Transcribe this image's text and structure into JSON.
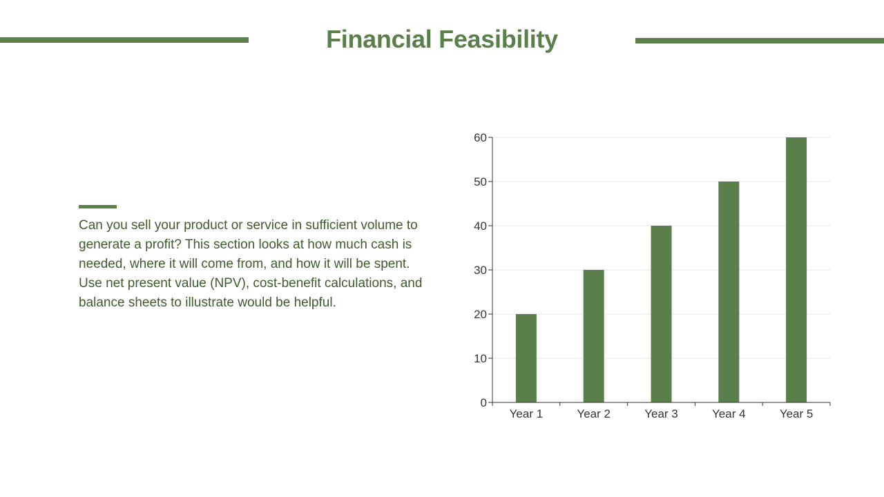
{
  "slide": {
    "title": "Financial Feasibility",
    "body": "Can you sell your product or service in sufficient volume to generate a profit? This section looks at how much cash is needed, where it will come from, and how it will be spent. Use net present value (NPV), cost-benefit calculations, and balance sheets to illustrate would be helpful.",
    "accent_color": "#5b7f4b",
    "text_color": "#3f5a2e"
  },
  "chart_data": {
    "type": "bar",
    "categories": [
      "Year 1",
      "Year 2",
      "Year 3",
      "Year 4",
      "Year 5"
    ],
    "values": [
      20,
      30,
      40,
      50,
      60
    ],
    "title": "",
    "xlabel": "",
    "ylabel": "",
    "ylim": [
      0,
      60
    ],
    "yticks": [
      0,
      10,
      20,
      30,
      40,
      50,
      60
    ],
    "grid": true,
    "legend": "none",
    "bar_color": "#5b7f4b"
  }
}
